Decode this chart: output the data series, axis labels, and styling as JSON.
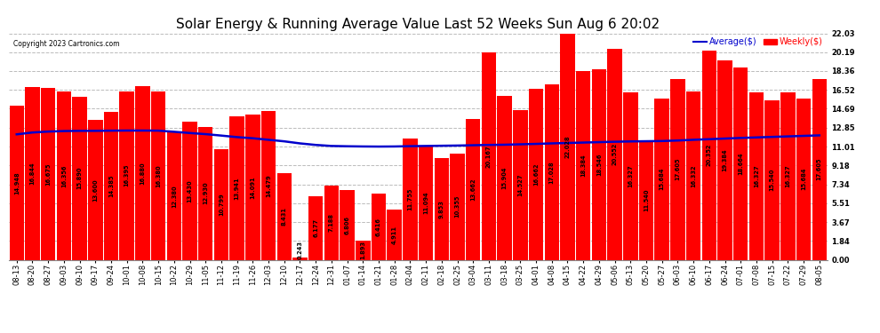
{
  "title": "Solar Energy & Running Average Value Last 52 Weeks Sun Aug 6 20:02",
  "copyright": "Copyright 2023 Cartronics.com",
  "legend_avg": "Average($)",
  "legend_weekly": "Weekly($)",
  "bar_color": "#ff0000",
  "avg_line_color": "#0000cc",
  "background_color": "#ffffff",
  "grid_color": "#bbbbbb",
  "yticks": [
    0.0,
    1.84,
    3.67,
    5.51,
    7.34,
    9.18,
    11.01,
    12.85,
    14.69,
    16.52,
    18.36,
    20.19,
    22.03
  ],
  "ylim": [
    0.0,
    22.03
  ],
  "categories": [
    "08-13",
    "08-20",
    "08-27",
    "09-03",
    "09-10",
    "09-17",
    "09-24",
    "10-01",
    "10-08",
    "10-15",
    "10-22",
    "10-29",
    "11-05",
    "11-12",
    "11-19",
    "11-26",
    "12-03",
    "12-10",
    "12-17",
    "12-24",
    "12-31",
    "01-07",
    "01-14",
    "01-21",
    "01-28",
    "02-04",
    "02-11",
    "02-18",
    "02-25",
    "03-04",
    "03-11",
    "03-18",
    "03-25",
    "04-01",
    "04-08",
    "04-15",
    "04-22",
    "04-29",
    "05-06",
    "05-13",
    "05-20",
    "05-27",
    "06-03",
    "06-10",
    "06-17",
    "06-24",
    "07-01",
    "07-08",
    "07-15",
    "07-22",
    "07-29",
    "08-05"
  ],
  "weekly_values": [
    14.948,
    16.844,
    16.675,
    16.356,
    15.89,
    13.6,
    14.385,
    16.395,
    16.88,
    16.38,
    12.38,
    13.43,
    12.93,
    10.799,
    13.941,
    14.091,
    14.479,
    8.431,
    0.243,
    6.177,
    7.188,
    6.806,
    1.893,
    6.416,
    4.911,
    11.755,
    11.094,
    9.853,
    10.355,
    13.662,
    20.167,
    15.904,
    14.527,
    16.662,
    17.028,
    22.028,
    18.384,
    18.546,
    20.552,
    16.327,
    11.54,
    15.684,
    17.605,
    16.332,
    20.352,
    19.384,
    18.664,
    16.327,
    15.54,
    16.327,
    15.684,
    17.605
  ],
  "avg_values": [
    12.2,
    12.38,
    12.47,
    12.52,
    12.54,
    12.54,
    12.56,
    12.57,
    12.57,
    12.56,
    12.45,
    12.33,
    12.22,
    12.08,
    11.93,
    11.82,
    11.67,
    11.52,
    11.32,
    11.17,
    11.07,
    11.04,
    11.02,
    11.01,
    11.02,
    11.05,
    11.07,
    11.09,
    11.11,
    11.14,
    11.17,
    11.19,
    11.23,
    11.27,
    11.32,
    11.36,
    11.4,
    11.44,
    11.48,
    11.51,
    11.53,
    11.55,
    11.6,
    11.67,
    11.73,
    11.79,
    11.85,
    11.9,
    11.95,
    12.0,
    12.05,
    12.1
  ],
  "title_fontsize": 11,
  "tick_fontsize": 6,
  "value_fontsize": 4.8,
  "fig_width": 9.9,
  "fig_height": 3.75,
  "dpi": 100
}
